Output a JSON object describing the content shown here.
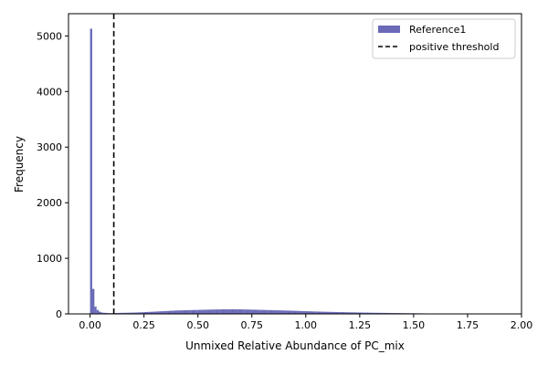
{
  "chart_data": {
    "type": "bar",
    "title": "",
    "xlabel": "Unmixed Relative Abundance of PC_mix",
    "ylabel": "Frequency",
    "xlim": [
      -0.1,
      2.0
    ],
    "ylim": [
      0,
      5400
    ],
    "xticks": [
      0.0,
      0.25,
      0.5,
      0.75,
      1.0,
      1.25,
      1.5,
      1.75,
      2.0
    ],
    "xtick_labels": [
      "0.00",
      "0.25",
      "0.50",
      "0.75",
      "1.00",
      "1.25",
      "1.50",
      "1.75",
      "2.00"
    ],
    "yticks": [
      0,
      1000,
      2000,
      3000,
      4000,
      5000
    ],
    "ytick_labels": [
      "0",
      "1000",
      "2000",
      "3000",
      "4000",
      "5000"
    ],
    "grid": false,
    "legend_position": "top-right",
    "threshold": {
      "name": "positive threshold",
      "x": 0.11,
      "color": "#000000",
      "style": "dashed"
    },
    "series": [
      {
        "name": "Reference1",
        "color": "#6a6ab8",
        "bin_width": 0.01,
        "bin_starts": [
          0.0,
          0.01,
          0.02,
          0.03,
          0.04,
          0.05,
          0.06,
          0.07,
          0.08,
          0.09,
          0.1,
          0.11,
          0.12,
          0.13,
          0.14,
          0.15,
          0.16,
          0.17,
          0.18,
          0.19,
          0.2,
          0.21,
          0.22,
          0.23,
          0.24,
          0.25,
          0.26,
          0.27,
          0.28,
          0.29,
          0.3,
          0.31,
          0.32,
          0.33,
          0.34,
          0.35,
          0.36,
          0.37,
          0.38,
          0.39,
          0.4,
          0.41,
          0.42,
          0.43,
          0.44,
          0.45,
          0.46,
          0.47,
          0.48,
          0.49,
          0.5,
          0.51,
          0.52,
          0.53,
          0.54,
          0.55,
          0.56,
          0.57,
          0.58,
          0.59,
          0.6,
          0.61,
          0.62,
          0.63,
          0.64,
          0.65,
          0.66,
          0.67,
          0.68,
          0.69,
          0.7,
          0.71,
          0.72,
          0.73,
          0.74,
          0.75,
          0.76,
          0.77,
          0.78,
          0.79,
          0.8,
          0.81,
          0.82,
          0.83,
          0.84,
          0.85,
          0.86,
          0.87,
          0.88,
          0.89,
          0.9,
          0.91,
          0.92,
          0.93,
          0.94,
          0.95,
          0.96,
          0.97,
          0.98,
          0.99,
          1.0,
          1.01,
          1.02,
          1.03,
          1.04,
          1.05,
          1.06,
          1.07,
          1.08,
          1.09,
          1.1,
          1.11,
          1.12,
          1.13,
          1.14,
          1.15,
          1.16,
          1.17,
          1.18,
          1.19,
          1.2,
          1.21,
          1.22,
          1.23,
          1.24,
          1.25,
          1.26,
          1.27,
          1.28,
          1.29,
          1.3,
          1.31,
          1.32,
          1.33,
          1.34,
          1.35,
          1.36,
          1.37,
          1.38,
          1.39,
          1.4,
          1.41,
          1.42,
          1.43,
          1.44,
          1.45,
          1.46,
          1.47,
          1.48,
          1.49,
          1.5,
          1.51,
          1.52,
          1.53,
          1.54,
          1.55,
          1.56,
          1.57,
          1.58,
          1.59,
          1.6,
          1.61,
          1.62,
          1.63,
          1.64,
          1.65,
          1.66,
          1.67,
          1.68,
          1.69,
          1.7,
          1.71,
          1.72,
          1.73,
          1.74,
          1.75,
          1.76,
          1.77,
          1.78,
          1.79,
          1.8,
          1.81,
          1.82,
          1.83,
          1.84,
          1.85,
          1.86,
          1.87,
          1.88,
          1.89,
          1.9,
          1.91,
          1.92,
          1.93,
          1.94,
          1.95,
          1.96,
          1.97,
          1.98,
          1.99
        ],
        "values": [
          5130,
          450,
          130,
          70,
          40,
          25,
          20,
          18,
          15,
          14,
          14,
          16,
          17,
          18,
          19,
          20,
          20,
          21,
          22,
          23,
          24,
          25,
          27,
          28,
          30,
          32,
          34,
          36,
          38,
          40,
          42,
          44,
          46,
          48,
          50,
          52,
          54,
          56,
          58,
          60,
          62,
          63,
          64,
          65,
          66,
          67,
          68,
          69,
          70,
          71,
          72,
          73,
          74,
          75,
          76,
          77,
          78,
          79,
          80,
          80,
          81,
          82,
          82,
          83,
          83,
          84,
          84,
          83,
          83,
          82,
          81,
          80,
          79,
          78,
          77,
          76,
          75,
          74,
          73,
          72,
          71,
          70,
          69,
          68,
          67,
          66,
          65,
          64,
          63,
          62,
          61,
          60,
          59,
          58,
          56,
          55,
          53,
          52,
          50,
          49,
          48,
          47,
          46,
          44,
          43,
          42,
          41,
          40,
          39,
          38,
          37,
          36,
          35,
          34,
          33,
          32,
          32,
          31,
          30,
          29,
          28,
          28,
          27,
          26,
          25,
          25,
          24,
          23,
          23,
          22,
          21,
          21,
          20,
          20,
          19,
          19,
          18,
          18,
          17,
          17,
          16,
          16,
          15,
          15,
          14,
          14,
          13,
          13,
          12,
          12,
          11,
          11,
          10,
          10,
          9,
          9,
          8,
          8,
          7,
          7,
          7,
          6,
          6,
          6,
          5,
          5,
          5,
          5,
          4,
          4,
          4,
          4,
          3,
          3,
          3,
          3,
          3,
          3,
          2,
          2,
          2,
          2,
          2,
          2,
          2,
          2,
          1,
          1,
          1,
          1,
          1,
          1,
          1,
          1,
          1,
          1,
          1,
          1,
          1,
          1
        ]
      }
    ]
  }
}
